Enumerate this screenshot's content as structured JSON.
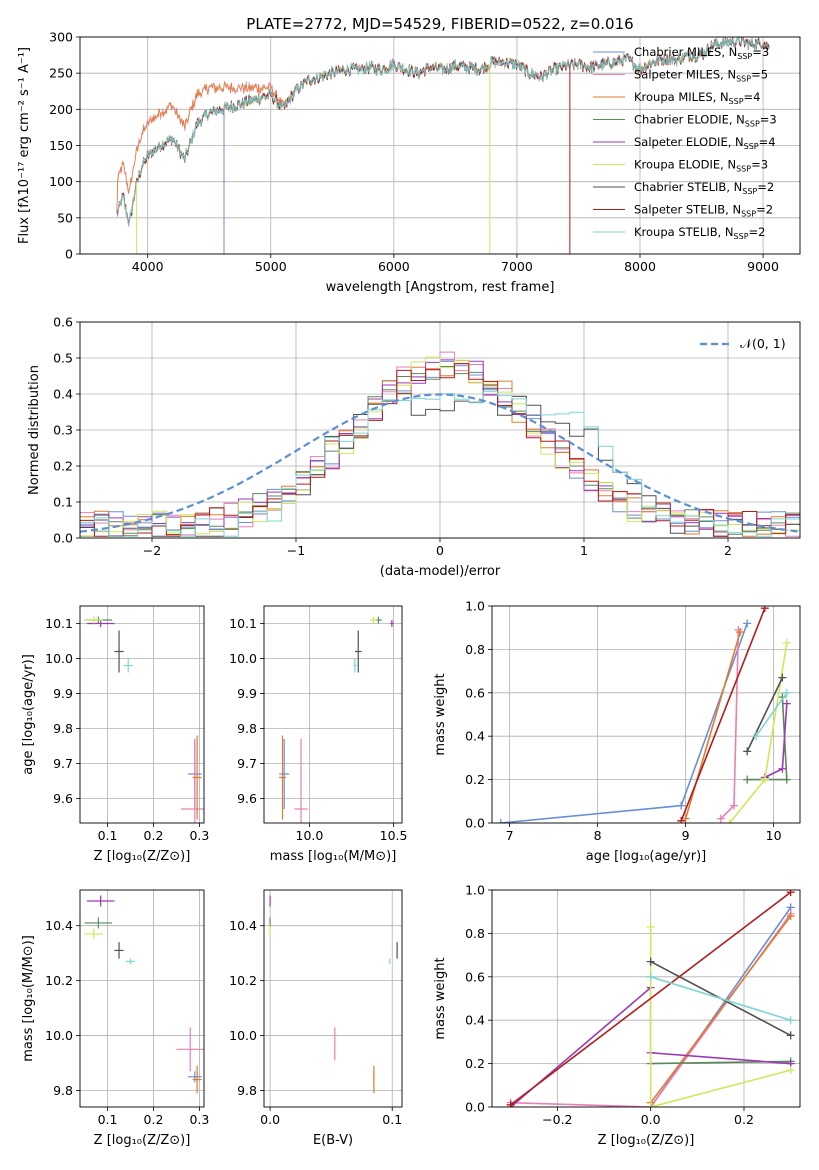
{
  "colors": {
    "Chabrier MILES": "#6b8fd6",
    "Salpeter MILES": "#e87fb5",
    "Kroupa MILES": "#e07b2f",
    "Chabrier ELODIE": "#5a8a5a",
    "Salpeter ELODIE": "#9a3ab5",
    "Kroupa ELODIE": "#cfe85a",
    "Chabrier STELIB": "#505050",
    "Salpeter STELIB": "#b21c1c",
    "Kroupa STELIB": "#7ed6d2",
    "gauss": "#5b8fd6"
  },
  "chart_data": [
    {
      "id": "spectrum",
      "type": "line",
      "title": "PLATE=2772, MJD=54529, FIBERID=0522, z=0.016",
      "xlabel": "wavelength [Angstrom, rest frame]",
      "ylabel": "Flux [fλ10⁻¹⁷ erg cm⁻² s⁻¹ A⁻¹]",
      "xlim": [
        3450,
        9300
      ],
      "ylim": [
        0,
        300
      ],
      "xticks": [
        4000,
        5000,
        6000,
        7000,
        8000,
        9000
      ],
      "yticks": [
        0,
        50,
        100,
        150,
        200,
        250,
        300
      ],
      "legend": [
        {
          "model": "Chabrier MILES",
          "label": "Chabrier MILES, N",
          "sub": "SSP",
          "tail": "=3"
        },
        {
          "model": "Salpeter MILES",
          "label": "Salpeter MILES, N",
          "sub": "SSP",
          "tail": "=5"
        },
        {
          "model": "Kroupa MILES",
          "label": "Kroupa MILES, N",
          "sub": "SSP",
          "tail": "=4"
        },
        {
          "model": "Chabrier ELODIE",
          "label": "Chabrier ELODIE, N",
          "sub": "SSP",
          "tail": "=3"
        },
        {
          "model": "Salpeter ELODIE",
          "label": "Salpeter ELODIE, N",
          "sub": "SSP",
          "tail": "=4"
        },
        {
          "model": "Kroupa ELODIE",
          "label": "Kroupa ELODIE, N",
          "sub": "SSP",
          "tail": "=3"
        },
        {
          "model": "Chabrier STELIB",
          "label": "Chabrier STELIB, N",
          "sub": "SSP",
          "tail": "=2"
        },
        {
          "model": "Salpeter STELIB",
          "label": "Salpeter STELIB, N",
          "sub": "SSP",
          "tail": "=2"
        },
        {
          "model": "Kroupa STELIB",
          "label": "Kroupa STELIB, N",
          "sub": "SSP",
          "tail": "=2"
        }
      ],
      "anchors": [
        [
          3750,
          55
        ],
        [
          3800,
          80
        ],
        [
          3850,
          40
        ],
        [
          3900,
          90
        ],
        [
          3950,
          120
        ],
        [
          4000,
          135
        ],
        [
          4100,
          150
        ],
        [
          4200,
          160
        ],
        [
          4300,
          130
        ],
        [
          4400,
          180
        ],
        [
          4500,
          195
        ],
        [
          4600,
          200
        ],
        [
          4700,
          205
        ],
        [
          4800,
          210
        ],
        [
          4900,
          215
        ],
        [
          5000,
          220
        ],
        [
          5100,
          200
        ],
        [
          5200,
          225
        ],
        [
          5300,
          240
        ],
        [
          5400,
          245
        ],
        [
          5500,
          250
        ],
        [
          5600,
          255
        ],
        [
          5700,
          255
        ],
        [
          5800,
          258
        ],
        [
          5900,
          255
        ],
        [
          6000,
          262
        ],
        [
          6100,
          255
        ],
        [
          6200,
          250
        ],
        [
          6300,
          258
        ],
        [
          6400,
          255
        ],
        [
          6500,
          260
        ],
        [
          6600,
          258
        ],
        [
          6700,
          255
        ],
        [
          6800,
          265
        ],
        [
          6900,
          265
        ],
        [
          7000,
          262
        ],
        [
          7100,
          250
        ],
        [
          7200,
          245
        ],
        [
          7300,
          255
        ],
        [
          7400,
          260
        ],
        [
          7500,
          262
        ],
        [
          7600,
          258
        ],
        [
          7700,
          262
        ],
        [
          7800,
          265
        ],
        [
          7900,
          270
        ],
        [
          8000,
          255
        ],
        [
          8100,
          265
        ],
        [
          8200,
          270
        ],
        [
          8300,
          268
        ],
        [
          8400,
          275
        ],
        [
          8500,
          275
        ],
        [
          8600,
          290
        ],
        [
          8700,
          292
        ],
        [
          8800,
          295
        ],
        [
          8900,
          290
        ],
        [
          9000,
          292
        ],
        [
          9050,
          285
        ]
      ],
      "blue_offset_models": [
        "Kroupa MILES",
        "Salpeter MILES"
      ],
      "spikes": [
        {
          "model": "Salpeter STELIB",
          "x": 7430,
          "y": 0
        },
        {
          "model": "Kroupa ELODIE",
          "x": 6780,
          "y": 0
        },
        {
          "model": "Kroupa ELODIE",
          "x": 3910,
          "y": 0
        },
        {
          "model": "Chabrier MILES",
          "x": 4620,
          "y": 0
        }
      ]
    },
    {
      "id": "residuals",
      "type": "bar",
      "xlabel": "(data-model)/error",
      "ylabel": "Normed distribution",
      "xlim": [
        -2.5,
        2.5
      ],
      "ylim": [
        0,
        0.6
      ],
      "xticks": [
        -2,
        -1,
        0,
        1,
        2
      ],
      "yticks": [
        0.0,
        0.1,
        0.2,
        0.3,
        0.4,
        0.5,
        0.6
      ],
      "gauss_label": "𝒩(0, 1)",
      "bin_start": -2.5,
      "bin_width": 0.1,
      "bins": 50
    },
    {
      "id": "age-Z",
      "type": "scatter",
      "xlabel": "Z [log₁₀(Z/Z⊙)]",
      "ylabel": "age  [log₁₀(age/yr)]",
      "xlim": [
        0.04,
        0.31
      ],
      "ylim": [
        9.53,
        10.15
      ],
      "xticks": [
        0.1,
        0.2,
        0.3
      ],
      "yticks": [
        9.6,
        9.7,
        9.8,
        9.9,
        10.0,
        10.1
      ],
      "points": [
        {
          "model": "Chabrier MILES",
          "x": 0.29,
          "y": 9.67,
          "ex": 0.015,
          "ey": 0.1
        },
        {
          "model": "Salpeter MILES",
          "x": 0.29,
          "y": 9.57,
          "ex": 0.03,
          "ey": 0.2
        },
        {
          "model": "Kroupa MILES",
          "x": 0.295,
          "y": 9.66,
          "ex": 0.01,
          "ey": 0.12
        },
        {
          "model": "Chabrier ELODIE",
          "x": 0.08,
          "y": 10.11,
          "ex": 0.03,
          "ey": 0.01
        },
        {
          "model": "Salpeter ELODIE",
          "x": 0.085,
          "y": 10.1,
          "ex": 0.03,
          "ey": 0.01
        },
        {
          "model": "Kroupa ELODIE",
          "x": 0.07,
          "y": 10.11,
          "ex": 0.02,
          "ey": 0.01
        },
        {
          "model": "Chabrier STELIB",
          "x": 0.125,
          "y": 10.02,
          "ex": 0.01,
          "ey": 0.06
        },
        {
          "model": "Kroupa STELIB",
          "x": 0.145,
          "y": 9.98,
          "ex": 0.01,
          "ey": 0.02
        }
      ]
    },
    {
      "id": "age-mass",
      "type": "scatter",
      "xlabel": "mass [log₁₀(M/M⊙)]",
      "ylabel": "",
      "xlim": [
        9.73,
        10.55
      ],
      "ylim": [
        9.53,
        10.15
      ],
      "xticks": [
        10.0,
        10.5
      ],
      "yticks": [
        9.6,
        9.7,
        9.8,
        9.9,
        10.0,
        10.1
      ],
      "points": [
        {
          "model": "Chabrier MILES",
          "x": 9.85,
          "y": 9.67,
          "ex": 0.03,
          "ey": 0.1
        },
        {
          "model": "Salpeter MILES",
          "x": 9.95,
          "y": 9.57,
          "ex": 0.04,
          "ey": 0.2
        },
        {
          "model": "Kroupa MILES",
          "x": 9.84,
          "y": 9.66,
          "ex": 0.02,
          "ey": 0.12
        },
        {
          "model": "Chabrier ELODIE",
          "x": 10.41,
          "y": 10.11,
          "ex": 0.02,
          "ey": 0.01
        },
        {
          "model": "Salpeter ELODIE",
          "x": 10.49,
          "y": 10.1,
          "ex": 0.01,
          "ey": 0.01
        },
        {
          "model": "Kroupa ELODIE",
          "x": 10.38,
          "y": 10.11,
          "ex": 0.02,
          "ey": 0.01
        },
        {
          "model": "Chabrier STELIB",
          "x": 10.29,
          "y": 10.02,
          "ex": 0.02,
          "ey": 0.06
        },
        {
          "model": "Kroupa STELIB",
          "x": 10.27,
          "y": 9.98,
          "ex": 0.01,
          "ey": 0.02
        }
      ]
    },
    {
      "id": "weight-age",
      "type": "line",
      "xlabel": "age  [log₁₀(age/yr)]",
      "ylabel": "mass weight",
      "xlim": [
        6.8,
        10.3
      ],
      "ylim": [
        0,
        1.0
      ],
      "xticks": [
        7,
        8,
        9,
        10
      ],
      "yticks": [
        0.0,
        0.2,
        0.4,
        0.6,
        0.8,
        1.0
      ],
      "series": [
        {
          "model": "Chabrier MILES",
          "x": [
            6.9,
            8.95,
            9.7
          ],
          "y": [
            0.0,
            0.08,
            0.92
          ]
        },
        {
          "model": "Salpeter MILES",
          "x": [
            9.4,
            9.55,
            9.6
          ],
          "y": [
            0.02,
            0.08,
            0.89
          ]
        },
        {
          "model": "Kroupa MILES",
          "x": [
            9.0,
            9.62
          ],
          "y": [
            0.02,
            0.88
          ]
        },
        {
          "model": "Chabrier ELODIE",
          "x": [
            9.7,
            10.15,
            10.1
          ],
          "y": [
            0.2,
            0.2,
            0.58
          ]
        },
        {
          "model": "Salpeter ELODIE",
          "x": [
            9.9,
            10.1,
            10.15
          ],
          "y": [
            0.21,
            0.25,
            0.55
          ]
        },
        {
          "model": "Kroupa ELODIE",
          "x": [
            9.5,
            9.9,
            10.15
          ],
          "y": [
            0.0,
            0.2,
            0.83
          ]
        },
        {
          "model": "Chabrier STELIB",
          "x": [
            9.7,
            10.1
          ],
          "y": [
            0.33,
            0.67
          ]
        },
        {
          "model": "Salpeter STELIB",
          "x": [
            8.95,
            9.9
          ],
          "y": [
            0.01,
            0.99
          ]
        },
        {
          "model": "Kroupa STELIB",
          "x": [
            9.8,
            10.15
          ],
          "y": [
            0.4,
            0.6
          ]
        }
      ]
    },
    {
      "id": "mass-Z",
      "type": "scatter",
      "xlabel": "Z [log₁₀(Z/Z⊙)]",
      "ylabel": "mass [log₁₀(M/M⊙)]",
      "xlim": [
        0.04,
        0.31
      ],
      "ylim": [
        9.74,
        10.53
      ],
      "xticks": [
        0.1,
        0.2,
        0.3
      ],
      "yticks": [
        9.8,
        10.0,
        10.2,
        10.4
      ],
      "points": [
        {
          "model": "Chabrier MILES",
          "x": 0.29,
          "y": 9.85,
          "ex": 0.015,
          "ey": 0.02
        },
        {
          "model": "Salpeter MILES",
          "x": 0.28,
          "y": 9.95,
          "ex": 0.03,
          "ey": 0.08
        },
        {
          "model": "Kroupa MILES",
          "x": 0.295,
          "y": 9.84,
          "ex": 0.01,
          "ey": 0.05
        },
        {
          "model": "Chabrier ELODIE",
          "x": 0.08,
          "y": 10.41,
          "ex": 0.03,
          "ey": 0.02
        },
        {
          "model": "Salpeter ELODIE",
          "x": 0.085,
          "y": 10.49,
          "ex": 0.03,
          "ey": 0.02
        },
        {
          "model": "Kroupa ELODIE",
          "x": 0.07,
          "y": 10.37,
          "ex": 0.02,
          "ey": 0.02
        },
        {
          "model": "Chabrier STELIB",
          "x": 0.125,
          "y": 10.31,
          "ex": 0.01,
          "ey": 0.03
        },
        {
          "model": "Kroupa STELIB",
          "x": 0.15,
          "y": 10.27,
          "ex": 0.01,
          "ey": 0.01
        }
      ]
    },
    {
      "id": "mass-EBV",
      "type": "scatter",
      "xlabel": "E(B-V)",
      "ylabel": "",
      "xlim": [
        -0.005,
        0.108
      ],
      "ylim": [
        9.74,
        10.53
      ],
      "xticks": [
        0.0,
        0.1
      ],
      "yticks": [
        9.8,
        10.0,
        10.2,
        10.4
      ],
      "points": [
        {
          "model": "Chabrier MILES",
          "x": 0.085,
          "y": 9.85,
          "ex": 0,
          "ey": 0.02
        },
        {
          "model": "Salpeter MILES",
          "x": 0.053,
          "y": 9.97,
          "ex": 0,
          "ey": 0.06
        },
        {
          "model": "Kroupa MILES",
          "x": 0.085,
          "y": 9.84,
          "ex": 0,
          "ey": 0.05
        },
        {
          "model": "Chabrier ELODIE",
          "x": 0.0,
          "y": 10.41,
          "ex": 0,
          "ey": 0.02
        },
        {
          "model": "Salpeter ELODIE",
          "x": 0.0,
          "y": 10.49,
          "ex": 0,
          "ey": 0.02
        },
        {
          "model": "Kroupa ELODIE",
          "x": 0.0,
          "y": 10.38,
          "ex": 0,
          "ey": 0.02
        },
        {
          "model": "Chabrier STELIB",
          "x": 0.104,
          "y": 10.31,
          "ex": 0,
          "ey": 0.03
        },
        {
          "model": "Kroupa STELIB",
          "x": 0.098,
          "y": 10.27,
          "ex": 0,
          "ey": 0.01
        }
      ]
    },
    {
      "id": "weight-Z",
      "type": "line",
      "xlabel": "Z [log₁₀(Z/Z⊙)]",
      "ylabel": "mass weight",
      "xlim": [
        -0.34,
        0.32
      ],
      "ylim": [
        0,
        1.0
      ],
      "xticks": [
        -0.2,
        0.0,
        0.2
      ],
      "yticks": [
        0.0,
        0.2,
        0.4,
        0.6,
        0.8,
        1.0
      ],
      "series": [
        {
          "model": "Chabrier MILES",
          "x": [
            0.0,
            0.3
          ],
          "y": [
            0.0,
            0.92
          ]
        },
        {
          "model": "Salpeter MILES",
          "x": [
            -0.3,
            0.0,
            0.3
          ],
          "y": [
            0.02,
            0.0,
            0.89
          ]
        },
        {
          "model": "Kroupa MILES",
          "x": [
            0.0,
            0.3
          ],
          "y": [
            0.02,
            0.88
          ]
        },
        {
          "model": "Chabrier ELODIE",
          "x": [
            0.0,
            0.3
          ],
          "y": [
            0.2,
            0.21
          ]
        },
        {
          "model": "Salpeter ELODIE",
          "x": [
            -0.3,
            0.0,
            0.0,
            0.3
          ],
          "y": [
            0.0,
            0.55,
            0.25,
            0.2
          ]
        },
        {
          "model": "Kroupa ELODIE",
          "x": [
            0.0,
            0.0,
            0.3
          ],
          "y": [
            0.83,
            0.0,
            0.17
          ]
        },
        {
          "model": "Chabrier STELIB",
          "x": [
            0.0,
            0.3
          ],
          "y": [
            0.67,
            0.33
          ]
        },
        {
          "model": "Salpeter STELIB",
          "x": [
            -0.3,
            0.3
          ],
          "y": [
            0.01,
            0.99
          ]
        },
        {
          "model": "Kroupa STELIB",
          "x": [
            0.0,
            0.3
          ],
          "y": [
            0.6,
            0.4
          ]
        }
      ]
    }
  ]
}
